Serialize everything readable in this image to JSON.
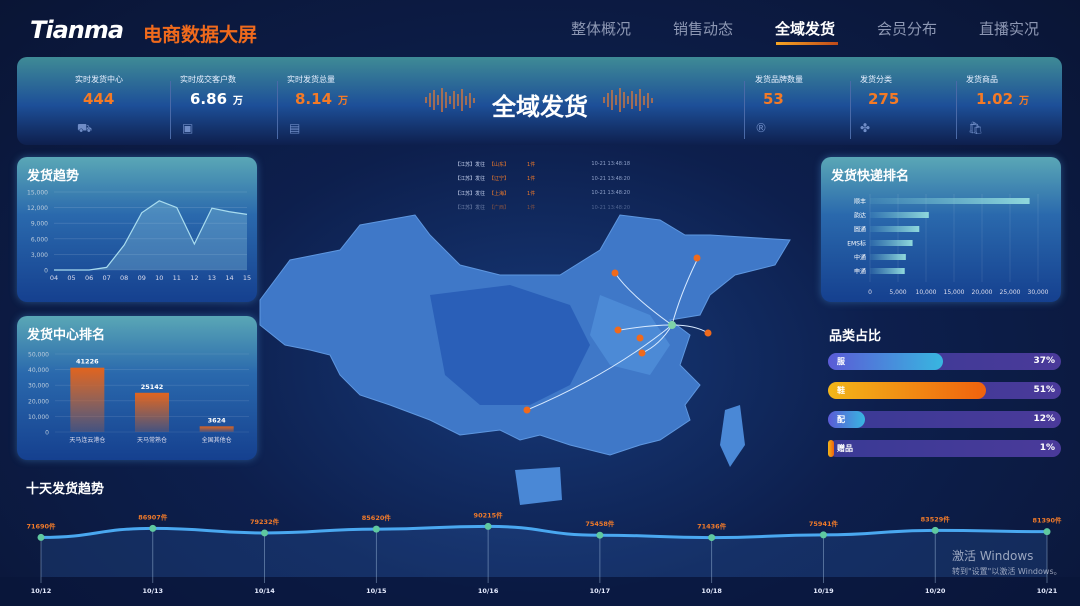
{
  "header": {
    "logo": "Tianma",
    "subtitle": "电商数据大屏",
    "nav": [
      {
        "label": "整体概况"
      },
      {
        "label": "销售动态"
      },
      {
        "label": "全域发货",
        "active": true
      },
      {
        "label": "会员分布"
      },
      {
        "label": "直播实况"
      }
    ]
  },
  "stats": {
    "title": "全域发货",
    "items": [
      {
        "label": "实时发货中心",
        "value": "444",
        "unit": "",
        "icon": "truck-icon",
        "color": "#f47a26"
      },
      {
        "label": "实时成交客户数",
        "value": "6.86",
        "unit": "万",
        "icon": "wallet-icon",
        "color": "#ffffff"
      },
      {
        "label": "实时发货总量",
        "value": "8.14",
        "unit": "万",
        "icon": "box-icon",
        "color": "#f47a26"
      },
      {
        "label": "发货品牌数量",
        "value": "53",
        "unit": "",
        "icon": "registered-icon",
        "color": "#f47a26"
      },
      {
        "label": "发货分类",
        "value": "275",
        "unit": "",
        "icon": "category-icon",
        "color": "#f47a26"
      },
      {
        "label": "发货商品",
        "value": "1.02",
        "unit": "万",
        "icon": "bag-icon",
        "color": "#f47a26"
      }
    ]
  },
  "ticker": [
    {
      "from": "【江苏】发往",
      "to": "【山东】",
      "num": "1件",
      "time": "10-21 13:48:18"
    },
    {
      "from": "【江苏】发往",
      "to": "【辽宁】",
      "num": "1件",
      "time": "10-21 13:48:20"
    },
    {
      "from": "【江苏】发往",
      "to": "【上海】",
      "num": "1件",
      "time": "10-21 13:48:20"
    },
    {
      "from": "【江苏】发往",
      "to": "【广西】",
      "num": "1件",
      "time": "10-21 13:48:20"
    }
  ],
  "chart_data": [
    {
      "type": "area",
      "title": "发货趋势",
      "categories": [
        "04",
        "05",
        "06",
        "07",
        "08",
        "09",
        "10",
        "11",
        "12",
        "13",
        "14",
        "15"
      ],
      "values": [
        0,
        0,
        0,
        500,
        4800,
        11000,
        13300,
        12000,
        5000,
        11900,
        11200,
        10700
      ],
      "ylim": [
        0,
        15000
      ],
      "yticks": [
        "0",
        "3,000",
        "6,000",
        "9,000",
        "12,000",
        "15,000"
      ],
      "grid": true
    },
    {
      "type": "bar",
      "title": "发货中心排名",
      "categories": [
        "天马连云港仓",
        "天马常熟仓",
        "全国其他仓"
      ],
      "values": [
        41226,
        25142,
        3624
      ],
      "ylim": [
        0,
        50000
      ],
      "yticks": [
        "0",
        "10,000",
        "20,000",
        "30,000",
        "40,000",
        "50,000"
      ],
      "grid": true
    },
    {
      "type": "bar",
      "orientation": "horizontal",
      "title": "发货快递排名",
      "categories": [
        "顺丰",
        "韵达",
        "圆通",
        "EMS标",
        "中通",
        "申通"
      ],
      "values": [
        28500,
        10500,
        8800,
        7600,
        6400,
        6200
      ],
      "xlim": [
        0,
        30000
      ],
      "xticks": [
        "0",
        "5,000",
        "10,000",
        "15,000",
        "20,000",
        "25,000",
        "30,000"
      ],
      "grid": true
    },
    {
      "type": "bar",
      "orientation": "horizontal",
      "title": "品类占比",
      "categories": [
        "服",
        "鞋",
        "配",
        "赠品"
      ],
      "values": [
        37,
        51,
        12,
        1
      ],
      "labels": [
        "37%",
        "51%",
        "12%",
        "1%"
      ],
      "colors": [
        [
          "#5b5bd6",
          "#38b6e0"
        ],
        [
          "#f2b619",
          "#f0620e"
        ],
        [
          "#5b5bd6",
          "#38b6e0"
        ],
        [
          "#f2b619",
          "#f0620e"
        ]
      ]
    },
    {
      "type": "line",
      "title": "十天发货趋势",
      "categories": [
        "10/12",
        "10/13",
        "10/14",
        "10/15",
        "10/16",
        "10/17",
        "10/18",
        "10/19",
        "10/20",
        "10/21"
      ],
      "values": [
        71690,
        86907,
        79232,
        85620,
        90215,
        75458,
        71436,
        75941,
        83529,
        81390
      ],
      "labels": [
        "71690件",
        "86907件",
        "79232件",
        "85620件",
        "90215件",
        "75458件",
        "71436件",
        "75941件",
        "83529件",
        "81390件"
      ]
    }
  ],
  "watermark": {
    "line1": "激活 Windows",
    "line2": "转到\"设置\"以激活 Windows。"
  }
}
